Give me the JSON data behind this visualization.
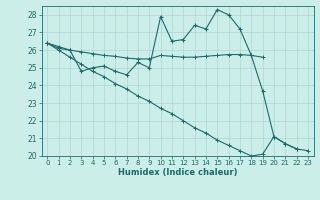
{
  "xlabel": "Humidex (Indice chaleur)",
  "xlim": [
    -0.5,
    23.5
  ],
  "ylim": [
    20,
    28.5
  ],
  "yticks": [
    20,
    21,
    22,
    23,
    24,
    25,
    26,
    27,
    28
  ],
  "xticks": [
    0,
    1,
    2,
    3,
    4,
    5,
    6,
    7,
    8,
    9,
    10,
    11,
    12,
    13,
    14,
    15,
    16,
    17,
    18,
    19,
    20,
    21,
    22,
    23
  ],
  "bg_color": "#cceee8",
  "grid_color": "#aad8d0",
  "line_color": "#1a6b6b",
  "line1_x": [
    0,
    1,
    2,
    3,
    4,
    5,
    6,
    7,
    8,
    9,
    10,
    11,
    12,
    13,
    14,
    15,
    16,
    17,
    18,
    19,
    20,
    21,
    22
  ],
  "line1_y": [
    26.4,
    26.2,
    26.0,
    24.8,
    25.0,
    25.1,
    24.8,
    24.6,
    25.3,
    25.0,
    27.9,
    26.5,
    26.6,
    27.4,
    27.2,
    28.3,
    28.0,
    27.2,
    25.7,
    23.7,
    21.1,
    20.7,
    20.4
  ],
  "line2_x": [
    0,
    1,
    2,
    3,
    4,
    5,
    6,
    7,
    8,
    9,
    10,
    11,
    12,
    13,
    14,
    15,
    16,
    17,
    18,
    19
  ],
  "line2_y": [
    26.4,
    26.1,
    26.0,
    25.9,
    25.8,
    25.7,
    25.65,
    25.55,
    25.5,
    25.5,
    25.7,
    25.65,
    25.6,
    25.6,
    25.65,
    25.7,
    25.75,
    25.75,
    25.7,
    25.6
  ],
  "line3_x": [
    0,
    1,
    2,
    3,
    4,
    5,
    6,
    7,
    8,
    9,
    10,
    11,
    12,
    13,
    14,
    15,
    16,
    17,
    18,
    19,
    20,
    21,
    22,
    23
  ],
  "line3_y": [
    26.4,
    26.0,
    25.6,
    25.2,
    24.8,
    24.5,
    24.1,
    23.8,
    23.4,
    23.1,
    22.7,
    22.4,
    22.0,
    21.6,
    21.3,
    20.9,
    20.6,
    20.3,
    20.0,
    20.1,
    21.1,
    20.7,
    20.4,
    20.3
  ],
  "figsize": [
    3.2,
    2.0
  ],
  "dpi": 100
}
